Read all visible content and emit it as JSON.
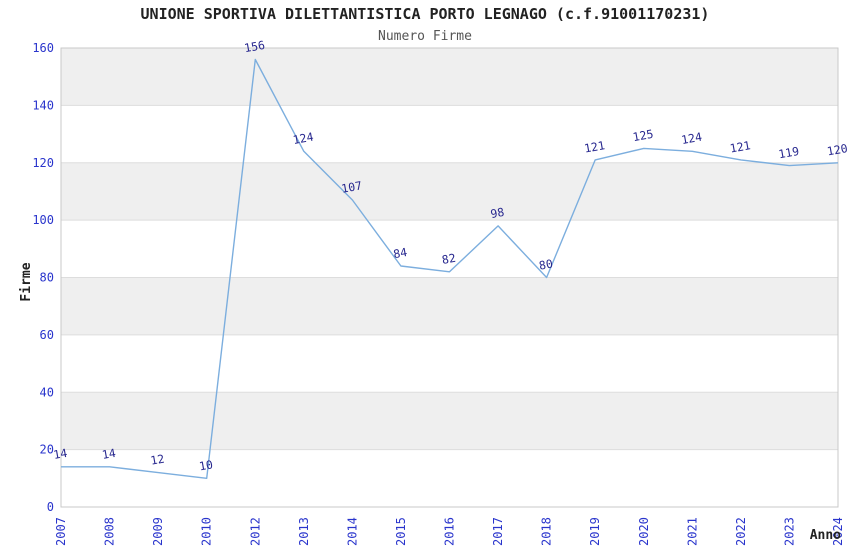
{
  "header": {
    "title": "UNIONE SPORTIVA DILETTANTISTICA PORTO LEGNAGO (c.f.91001170231)",
    "subtitle": "Numero Firme"
  },
  "chart_data": {
    "type": "line",
    "title": "UNIONE SPORTIVA DILETTANTISTICA PORTO LEGNAGO (c.f.91001170231)",
    "subtitle": "Numero Firme",
    "xlabel": "Anno",
    "ylabel": "Firme",
    "categories": [
      "2007",
      "2008",
      "2009",
      "2010",
      "2012",
      "2013",
      "2014",
      "2015",
      "2016",
      "2017",
      "2018",
      "2019",
      "2020",
      "2021",
      "2022",
      "2023",
      "2024"
    ],
    "values": [
      14,
      14,
      12,
      10,
      156,
      124,
      107,
      84,
      82,
      98,
      80,
      121,
      125,
      124,
      121,
      119,
      120
    ],
    "ylim": [
      0,
      160
    ],
    "ytick_step": 20,
    "grid": "horizontal-bands",
    "legend": "none",
    "colors": {
      "line": "#7caede",
      "data_label": "#28288f",
      "tick_label": "#2a35cc",
      "band_shaded": "#efefef",
      "band_plain": "#ffffff",
      "plot_border": "#c9c9c9",
      "grid_line": "#dddddd",
      "title": "#222222",
      "subtitle": "#555555",
      "axis_title": "#222222"
    }
  }
}
